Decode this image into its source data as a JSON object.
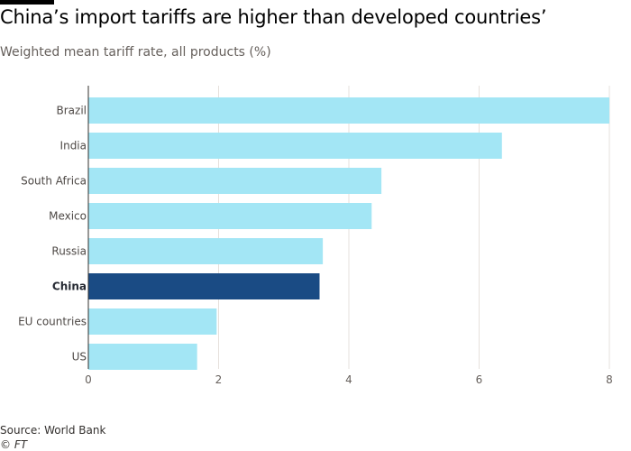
{
  "chart_data": {
    "type": "bar",
    "orientation": "horizontal",
    "title": "China’s import tariffs are higher than developed countries’",
    "subtitle": "Weighted mean tariff rate, all products (%)",
    "categories": [
      "Brazil",
      "India",
      "South Africa",
      "Mexico",
      "Russia",
      "China",
      "EU countries",
      "US"
    ],
    "values": [
      8.0,
      6.35,
      4.5,
      4.35,
      3.6,
      3.55,
      1.97,
      1.67
    ],
    "highlight": "China",
    "xlim": [
      0,
      8
    ],
    "xticks": [
      0,
      2,
      4,
      6,
      8
    ],
    "xlabel": "",
    "ylabel": "",
    "grid": true,
    "colors": {
      "bar": "#a3e6f5",
      "highlight": "#1a4b84",
      "grid": "#e6e1dc",
      "axis": "#33302e"
    }
  },
  "footer": {
    "source": "Source: World Bank",
    "credit": "© FT"
  }
}
